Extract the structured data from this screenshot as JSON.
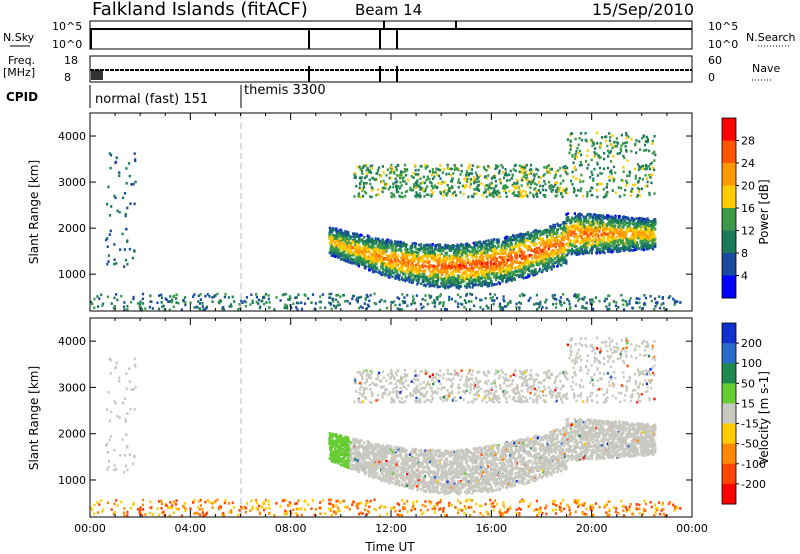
{
  "header": {
    "site": "Falkland Islands (fitACF)",
    "beam": "Beam 14",
    "date": "15/Sep/2010"
  },
  "status_panels": {
    "nsky_label": "N.Sky",
    "nsearch_label": "N.Search",
    "freq_label_1": "Freq.",
    "freq_label_2": "[MHz]",
    "nave_label": "Nave",
    "cpid_label": "CPID",
    "noise_ticks_left": [
      "10^5",
      "10^0"
    ],
    "noise_ticks_right": [
      "10^5",
      "10^0"
    ],
    "freq_ticks_left": [
      "18",
      "8"
    ],
    "nave_ticks_right": [
      "60",
      "0"
    ],
    "cpid_segments": [
      {
        "name": "normal (fast) 151",
        "start_hour": 0.0
      },
      {
        "name": "themis 3300",
        "start_hour": 6.0
      }
    ]
  },
  "chart_data": [
    {
      "type": "heatmap",
      "name": "power",
      "ylabel": "Slant Range [km]",
      "xlabel": "",
      "xlim_hours": [
        0,
        24
      ],
      "ylim": [
        200,
        4500
      ],
      "yticks": [
        "1000",
        "2000",
        "3000",
        "4000"
      ],
      "colorbar": {
        "label": "Power [dB]",
        "ticks": [
          "28",
          "24",
          "20",
          "16",
          "12",
          "8",
          "4"
        ],
        "colors": [
          "#ff0000",
          "#ff5500",
          "#ff9900",
          "#ffcc00",
          "#3a9a4a",
          "#1a7a5a",
          "#1a4aa0",
          "#0000ff"
        ]
      },
      "main_echo_band": {
        "start_hour": 9.5,
        "end_hour": 23.0,
        "range_km": [
          900,
          2300
        ],
        "peak_hour": 14.0,
        "peak_power_db": 25
      }
    },
    {
      "type": "heatmap",
      "name": "velocity",
      "ylabel": "Slant Range [km]",
      "xlabel": "Time UT",
      "xlim_hours": [
        0,
        24
      ],
      "ylim": [
        200,
        4500
      ],
      "yticks": [
        "1000",
        "2000",
        "3000",
        "4000"
      ],
      "xticks": [
        "00:00",
        "04:00",
        "08:00",
        "12:00",
        "16:00",
        "20:00",
        "00:00"
      ],
      "colorbar": {
        "label": "Velocity [m s-1]",
        "ticks": [
          "200",
          "100",
          "50",
          "15",
          "-15",
          "-50",
          "-100",
          "-200"
        ],
        "colors": [
          "#1030d0",
          "#2a6ac8",
          "#1f8a50",
          "#66cc33",
          "#c8c8c0",
          "#ffcc00",
          "#ff8800",
          "#ff4400",
          "#ff0000"
        ]
      }
    }
  ]
}
